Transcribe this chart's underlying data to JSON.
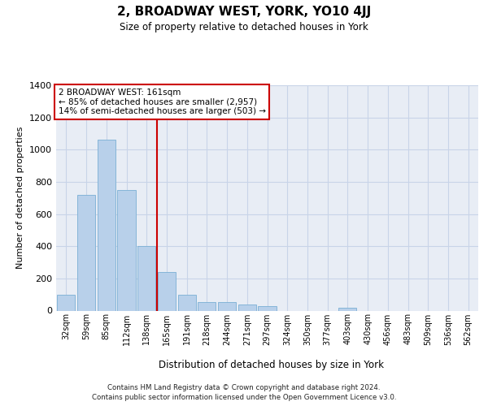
{
  "title": "2, BROADWAY WEST, YORK, YO10 4JJ",
  "subtitle": "Size of property relative to detached houses in York",
  "xlabel": "Distribution of detached houses by size in York",
  "ylabel": "Number of detached properties",
  "property_label": "2 BROADWAY WEST: 161sqm",
  "annotation_left": "← 85% of detached houses are smaller (2,957)",
  "annotation_right": "14% of semi-detached houses are larger (503) →",
  "footnote1": "Contains HM Land Registry data © Crown copyright and database right 2024.",
  "footnote2": "Contains public sector information licensed under the Open Government Licence v3.0.",
  "bin_labels": [
    "32sqm",
    "59sqm",
    "85sqm",
    "112sqm",
    "138sqm",
    "165sqm",
    "191sqm",
    "218sqm",
    "244sqm",
    "271sqm",
    "297sqm",
    "324sqm",
    "350sqm",
    "377sqm",
    "403sqm",
    "430sqm",
    "456sqm",
    "483sqm",
    "509sqm",
    "536sqm",
    "562sqm"
  ],
  "bar_values": [
    100,
    720,
    1060,
    750,
    400,
    240,
    100,
    55,
    55,
    40,
    30,
    0,
    0,
    0,
    20,
    0,
    0,
    0,
    0,
    0,
    0
  ],
  "bar_color": "#b8d0ea",
  "bar_edge_color": "#7aafd4",
  "grid_color": "#c8d4e8",
  "background_color": "#e8edf5",
  "vline_color": "#cc0000",
  "vline_index": 5,
  "ylim": [
    0,
    1400
  ],
  "yticks": [
    0,
    200,
    400,
    600,
    800,
    1000,
    1200,
    1400
  ]
}
